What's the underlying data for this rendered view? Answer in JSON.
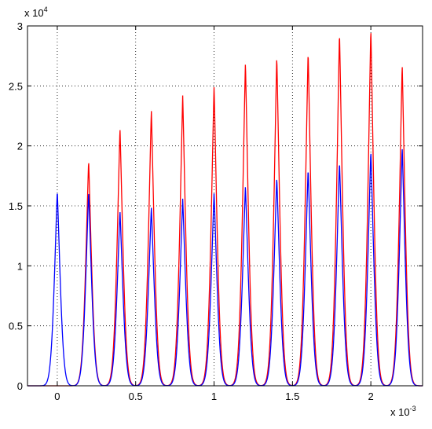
{
  "chart_data": {
    "type": "line",
    "title": "",
    "xlabel": "",
    "ylabel": "",
    "x_multiplier_label": "x 10",
    "x_multiplier_exponent": "-3",
    "y_multiplier_label": "x 10",
    "y_multiplier_exponent": "4",
    "xlim": [
      -0.00019,
      0.00233
    ],
    "ylim": [
      0,
      30000
    ],
    "x_ticks": [
      0,
      0.0005,
      0.001,
      0.0015,
      0.002
    ],
    "x_tick_labels": [
      "0",
      "0.5",
      "1",
      "1.5",
      "2"
    ],
    "y_ticks": [
      0,
      5000,
      10000,
      15000,
      20000,
      25000,
      30000
    ],
    "y_tick_labels": [
      "0",
      "0.5",
      "1",
      "1.5",
      "2",
      "2.5",
      "3"
    ],
    "grid": true,
    "peak_width": 2.5e-05,
    "series": [
      {
        "color": "#ff0000",
        "peaks": [
          {
            "x": 0.0002,
            "y": 18800
          },
          {
            "x": 0.0004,
            "y": 21500
          },
          {
            "x": 0.0006,
            "y": 23000
          },
          {
            "x": 0.0008,
            "y": 24200
          },
          {
            "x": 0.001,
            "y": 25000
          },
          {
            "x": 0.0012,
            "y": 27000
          },
          {
            "x": 0.0014,
            "y": 27500
          },
          {
            "x": 0.0016,
            "y": 27900
          },
          {
            "x": 0.0018,
            "y": 29500
          },
          {
            "x": 0.002,
            "y": 29800
          },
          {
            "x": 0.0022,
            "y": 26800
          }
        ]
      },
      {
        "color": "#0000ff",
        "peaks": [
          {
            "x": 0.0,
            "y": 16300
          },
          {
            "x": 0.0002,
            "y": 16200
          },
          {
            "x": 0.0004,
            "y": 14600
          },
          {
            "x": 0.0006,
            "y": 14900
          },
          {
            "x": 0.0008,
            "y": 15600
          },
          {
            "x": 0.001,
            "y": 16100
          },
          {
            "x": 0.0012,
            "y": 16700
          },
          {
            "x": 0.0014,
            "y": 17400
          },
          {
            "x": 0.0016,
            "y": 18100
          },
          {
            "x": 0.0018,
            "y": 18700
          },
          {
            "x": 0.002,
            "y": 19600
          },
          {
            "x": 0.0022,
            "y": 19900
          }
        ]
      }
    ]
  }
}
